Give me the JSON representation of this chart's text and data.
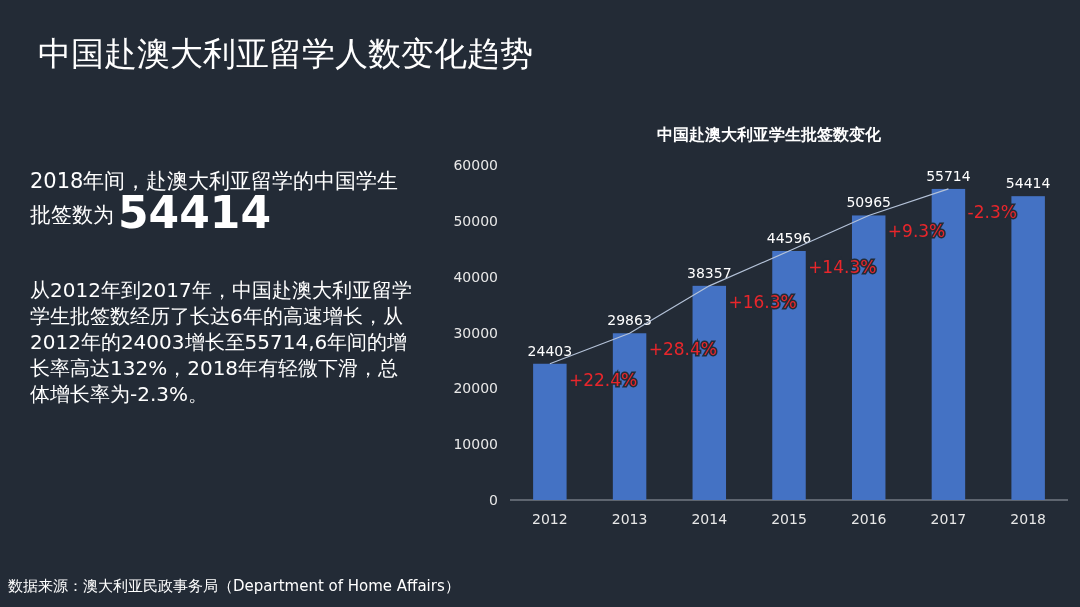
{
  "chart_data": [
    {
      "type": "other",
      "title": "中国赴澳大利亚留学人数变化趋势",
      "annotations": [
        "2018年间，赴澳大利亚留学的中国学生批签数为",
        "54414",
        "从2012年到2017年，中国赴澳大利亚留学学生批签数经历了长达6年的高速增长，从2012年的24003增长至55714,6年间的增长率高达132%，2018年有轻微下滑，总体增长率为-2.3%。",
        "数据来源：澳大利亚民政事务局（Department of Home Affairs）"
      ]
    },
    {
      "type": "bar",
      "title": "中国赴澳大利亚学生批签数变化",
      "categories": [
        "2012",
        "2013",
        "2014",
        "2015",
        "2016",
        "2017",
        "2018"
      ],
      "ylim": [
        0,
        60000
      ],
      "yticks": [
        0,
        10000,
        20000,
        30000,
        40000,
        50000,
        60000
      ],
      "grid": false,
      "series": [
        {
          "type": "bar",
          "color": "#4472c4",
          "values": [
            24403,
            29863,
            38357,
            44596,
            50965,
            55714,
            54414
          ],
          "value_labels": [
            "24403",
            "29863",
            "38357",
            "44596",
            "50965",
            "55714",
            "54414"
          ]
        },
        {
          "type": "line",
          "color": "#b4c2d8",
          "values": [
            24403,
            29863,
            38357,
            44596,
            50965,
            55714,
            null
          ]
        }
      ],
      "annotations": [
        "+22.4%",
        "+28.4%",
        "+16.3%",
        "+14.3%",
        "+9.3%",
        "-2.3%"
      ]
    }
  ]
}
